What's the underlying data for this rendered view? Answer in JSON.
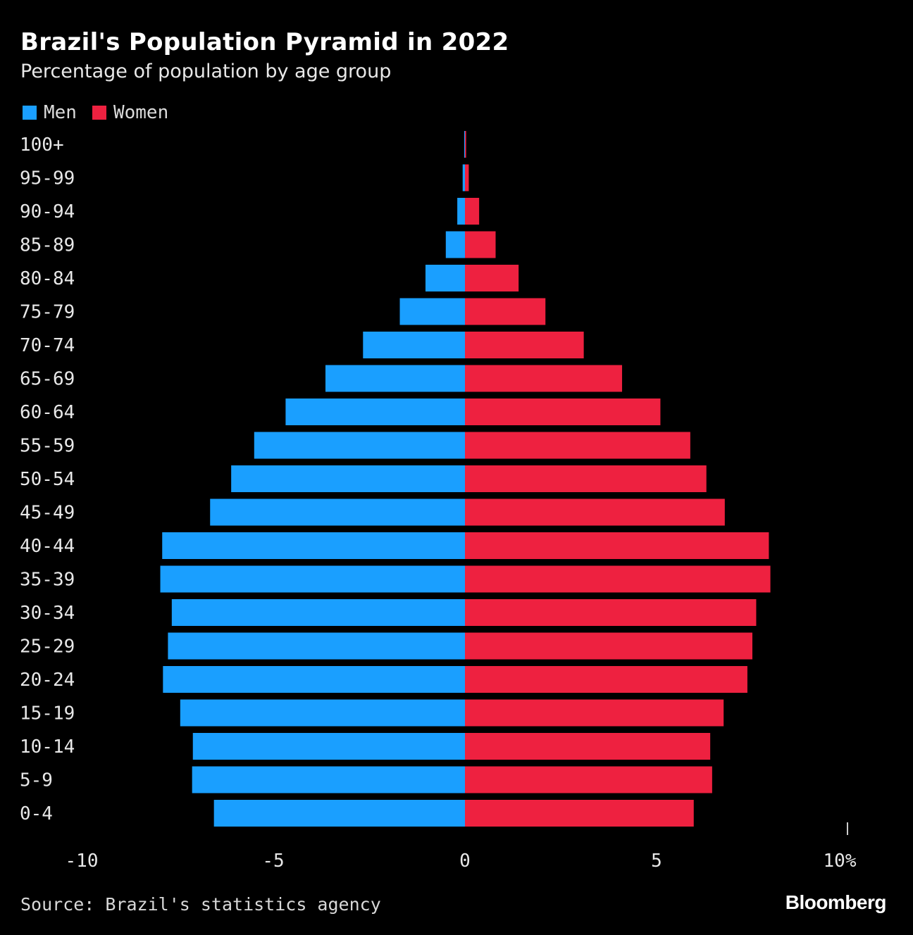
{
  "title": "Brazil's Population Pyramid in 2022",
  "subtitle": "Percentage of population by age group",
  "source": "Source: Brazil's statistics agency",
  "brand": "Bloomberg",
  "colors": {
    "men": "#1a9fff",
    "women": "#ee2140",
    "background": "#000000",
    "text": "#ffffff"
  },
  "chart_data": {
    "type": "bar",
    "orientation": "horizontal",
    "categories": [
      "100+",
      "95-99",
      "90-94",
      "85-89",
      "80-84",
      "75-79",
      "70-74",
      "65-69",
      "60-64",
      "55-59",
      "50-54",
      "45-49",
      "40-44",
      "35-39",
      "30-34",
      "25-29",
      "20-24",
      "15-19",
      "10-14",
      "5-9",
      "0-4"
    ],
    "series": [
      {
        "name": "Men",
        "color": "#1a9fff",
        "values": [
          -0.02,
          -0.06,
          -0.2,
          -0.5,
          -1.03,
          -1.7,
          -2.66,
          -3.64,
          -4.68,
          -5.5,
          -6.1,
          -6.65,
          -7.9,
          -7.95,
          -7.65,
          -7.75,
          -7.88,
          -7.43,
          -7.1,
          -7.12,
          -6.55
        ]
      },
      {
        "name": "Women",
        "color": "#ee2140",
        "values": [
          0.03,
          0.1,
          0.37,
          0.8,
          1.4,
          2.1,
          3.1,
          4.1,
          5.1,
          5.88,
          6.3,
          6.78,
          7.93,
          7.97,
          7.6,
          7.5,
          7.37,
          6.75,
          6.4,
          6.45,
          5.97
        ]
      }
    ],
    "xlim": [
      -10,
      10
    ],
    "xticks": [
      {
        "value": -10,
        "label": "-10"
      },
      {
        "value": -5,
        "label": "-5"
      },
      {
        "value": 0,
        "label": "0"
      },
      {
        "value": 5,
        "label": "5"
      },
      {
        "value": 10,
        "label": "10%"
      }
    ],
    "legend": "top-left",
    "grid": false
  }
}
